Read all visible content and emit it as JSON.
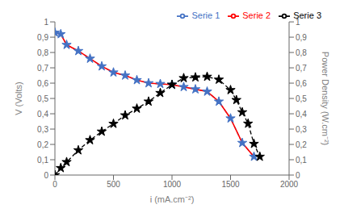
{
  "chart_data": {
    "type": "line",
    "xlabel": "i (mA.cm⁻²)",
    "ylabel": "V (Volts)",
    "y2label": "Power Density (W.cm⁻²)",
    "xlim": [
      0,
      2000
    ],
    "xticks": [
      0,
      500,
      1000,
      1500,
      2000
    ],
    "ylim": [
      0,
      1.0
    ],
    "yticks": [
      0,
      {
        "value": 0.1,
        "label": "0,1"
      },
      {
        "value": 0.2,
        "label": "0,2"
      },
      {
        "value": 0.3,
        "label": "0,3"
      },
      {
        "value": 0.4,
        "label": "0,4"
      },
      {
        "value": 0.5,
        "label": "0,5"
      },
      {
        "value": 0.6,
        "label": "0,6"
      },
      {
        "value": 0.7,
        "label": "0,7"
      },
      {
        "value": 0.8,
        "label": "0,8"
      },
      {
        "value": 0.9,
        "label": "0,9"
      },
      1
    ],
    "y2lim": [
      0,
      1.0
    ],
    "y2ticks": [
      0,
      {
        "value": 0.1,
        "label": "0,1"
      },
      {
        "value": 0.2,
        "label": "0,2"
      },
      {
        "value": 0.3,
        "label": "0,3"
      },
      {
        "value": 0.4,
        "label": "0,4"
      },
      {
        "value": 0.5,
        "label": "0,5"
      },
      {
        "value": 0.6,
        "label": "0,6"
      },
      {
        "value": 0.7,
        "label": "0,7"
      },
      {
        "value": 0.8,
        "label": "0,8"
      },
      {
        "value": 0.9,
        "label": "0,9"
      },
      1
    ],
    "grid": false,
    "legend": "upper right",
    "series": [
      {
        "name": "Serie 1",
        "color": "#4472C4",
        "line_style": "dashed",
        "marker": "star",
        "x": [
          0,
          50,
          100,
          200,
          300,
          400,
          500,
          600,
          700,
          800,
          900,
          1000,
          1100,
          1200,
          1300,
          1400,
          1500,
          1600,
          1700
        ],
        "values": [
          0.93,
          0.92,
          0.85,
          0.81,
          0.76,
          0.71,
          0.67,
          0.65,
          0.62,
          0.6,
          0.595,
          0.59,
          0.575,
          0.56,
          0.545,
          0.48,
          0.37,
          0.21,
          0.12
        ]
      },
      {
        "name": "Serie 2",
        "color": "#FF0000",
        "line_style": "solid",
        "x": [
          0,
          50,
          100,
          200,
          300,
          400,
          500,
          600,
          700,
          800,
          900,
          1000,
          1100,
          1200,
          1300,
          1400,
          1500,
          1600,
          1700
        ],
        "values": [
          0.93,
          0.92,
          0.85,
          0.81,
          0.76,
          0.71,
          0.67,
          0.65,
          0.62,
          0.6,
          0.595,
          0.59,
          0.575,
          0.56,
          0.545,
          0.48,
          0.37,
          0.21,
          0.12
        ]
      },
      {
        "name": "Serie 3",
        "color": "#000000",
        "line_style": "dashed",
        "marker": "star",
        "axis": "y2",
        "x": [
          0,
          50,
          100,
          200,
          300,
          400,
          500,
          600,
          700,
          800,
          900,
          1000,
          1100,
          1200,
          1300,
          1400,
          1500,
          1550,
          1600,
          1650,
          1700,
          1750
        ],
        "values": [
          0,
          0.046,
          0.085,
          0.162,
          0.228,
          0.284,
          0.335,
          0.39,
          0.434,
          0.48,
          0.536,
          0.59,
          0.633,
          0.638,
          0.642,
          0.623,
          0.555,
          0.49,
          0.41,
          0.336,
          0.204,
          0.12
        ]
      }
    ]
  }
}
